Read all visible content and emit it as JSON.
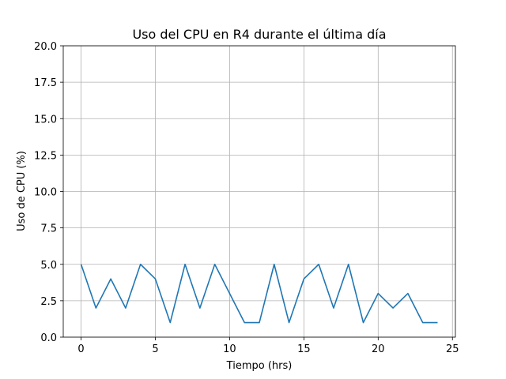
{
  "chart_data": {
    "type": "line",
    "title": "Uso del CPU en R4 durante el última día",
    "xlabel": "Tiempo (hrs)",
    "ylabel": "Uso de CPU (%)",
    "xlim": [
      -1.2,
      25.2
    ],
    "ylim": [
      0,
      20
    ],
    "grid": true,
    "x_ticks": [
      0,
      5,
      10,
      15,
      20,
      25
    ],
    "x_tick_labels": [
      "0",
      "5",
      "10",
      "15",
      "20",
      "25"
    ],
    "y_ticks": [
      0,
      2.5,
      5,
      7.5,
      10,
      12.5,
      15,
      17.5,
      20
    ],
    "y_tick_labels": [
      "0.0",
      "2.5",
      "5.0",
      "7.5",
      "10.0",
      "12.5",
      "15.0",
      "17.5",
      "20.0"
    ],
    "series": [
      {
        "name": "CPU",
        "color": "#1f77b4",
        "x": [
          0,
          1,
          2,
          3,
          4,
          5,
          6,
          7,
          8,
          9,
          10,
          11,
          12,
          13,
          14,
          15,
          16,
          17,
          18,
          19,
          20,
          21,
          22,
          23,
          24
        ],
        "values": [
          5,
          2,
          4,
          2,
          5,
          4,
          1,
          5,
          2,
          5,
          3,
          1,
          1,
          5,
          1,
          4,
          5,
          2,
          5,
          1,
          3,
          2,
          3,
          1,
          1
        ]
      }
    ]
  }
}
